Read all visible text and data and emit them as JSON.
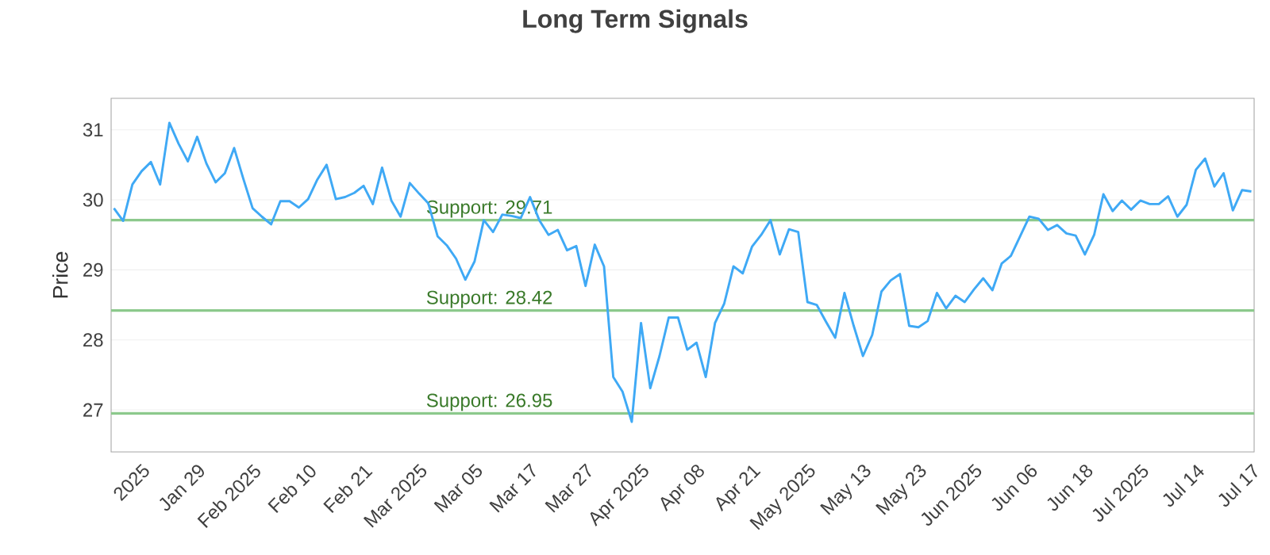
{
  "chart_data": {
    "type": "line",
    "title": "Long Term Signals",
    "ylabel": "Price",
    "categories": [
      null,
      null,
      null,
      "2025",
      null,
      null,
      null,
      null,
      null,
      "Jan 29",
      null,
      null,
      null,
      null,
      null,
      "Feb 2025",
      null,
      null,
      null,
      null,
      null,
      "Feb 10",
      null,
      null,
      null,
      null,
      null,
      "Feb 21",
      null,
      null,
      null,
      null,
      null,
      "Mar 2025",
      null,
      null,
      null,
      null,
      null,
      "Mar 05",
      null,
      null,
      null,
      null,
      null,
      "Mar 17",
      null,
      null,
      null,
      null,
      null,
      "Mar 27",
      null,
      null,
      null,
      null,
      null,
      "Apr 2025",
      null,
      null,
      null,
      null,
      null,
      "Apr 08",
      null,
      null,
      null,
      null,
      null,
      "Apr 21",
      null,
      null,
      null,
      null,
      null,
      "May 2025",
      null,
      null,
      null,
      null,
      null,
      "May 13",
      null,
      null,
      null,
      null,
      null,
      "May 23",
      null,
      null,
      null,
      null,
      null,
      "Jun 2025",
      null,
      null,
      null,
      null,
      null,
      "Jun 06",
      null,
      null,
      null,
      null,
      null,
      "Jun 18",
      null,
      null,
      null,
      null,
      null,
      "Jul 2025",
      null,
      null,
      null,
      null,
      null,
      "Jul 14",
      null,
      null,
      null,
      null,
      null,
      "Jul 17"
    ],
    "series": [
      {
        "color": "#3fa9f5",
        "values": [
          29.88,
          29.7,
          30.22,
          30.41,
          30.54,
          30.22,
          31.1,
          30.8,
          30.55,
          30.9,
          30.52,
          30.25,
          30.38,
          30.74,
          30.3,
          29.88,
          29.76,
          29.65,
          29.98,
          29.98,
          29.89,
          30.01,
          30.29,
          30.5,
          30.01,
          30.04,
          30.1,
          30.2,
          29.94,
          30.46,
          29.99,
          29.76,
          30.24,
          30.09,
          29.95,
          29.48,
          29.35,
          29.16,
          28.86,
          29.12,
          29.71,
          29.54,
          29.79,
          29.77,
          29.74,
          30.04,
          29.71,
          29.5,
          29.57,
          29.28,
          29.34,
          28.77,
          29.36,
          29.05,
          27.47,
          27.26,
          26.83,
          28.24,
          27.31,
          27.77,
          28.32,
          28.32,
          27.86,
          27.96,
          27.47,
          28.24,
          28.52,
          29.05,
          28.95,
          29.33,
          29.5,
          29.71,
          29.22,
          29.58,
          29.54,
          28.54,
          28.5,
          28.26,
          28.03,
          28.67,
          28.2,
          27.77,
          28.07,
          28.69,
          28.85,
          28.94,
          28.2,
          28.18,
          28.27,
          28.67,
          28.45,
          28.63,
          28.54,
          28.72,
          28.88,
          28.71,
          29.09,
          29.2,
          29.48,
          29.76,
          29.73,
          29.57,
          29.64,
          29.52,
          29.49,
          29.22,
          29.5,
          30.08,
          29.84,
          29.99,
          29.86,
          29.99,
          29.94,
          29.94,
          30.05,
          29.76,
          29.93,
          30.43,
          30.59,
          30.19,
          30.38,
          29.85,
          30.14,
          30.12
        ]
      }
    ],
    "ylim": [
      26.4,
      31.45
    ],
    "yticks": [
      27,
      28,
      29,
      30,
      31
    ],
    "grid": "y",
    "marker": "none",
    "ref_lines": [
      {
        "axis": "y",
        "value": 29.71,
        "label": "Support: 29.71",
        "color": "#8cc98c"
      },
      {
        "axis": "y",
        "value": 28.42,
        "label": "Support: 28.42",
        "color": "#8cc98c"
      },
      {
        "axis": "y",
        "value": 26.95,
        "label": "Support: 26.95",
        "color": "#8cc98c"
      }
    ]
  }
}
